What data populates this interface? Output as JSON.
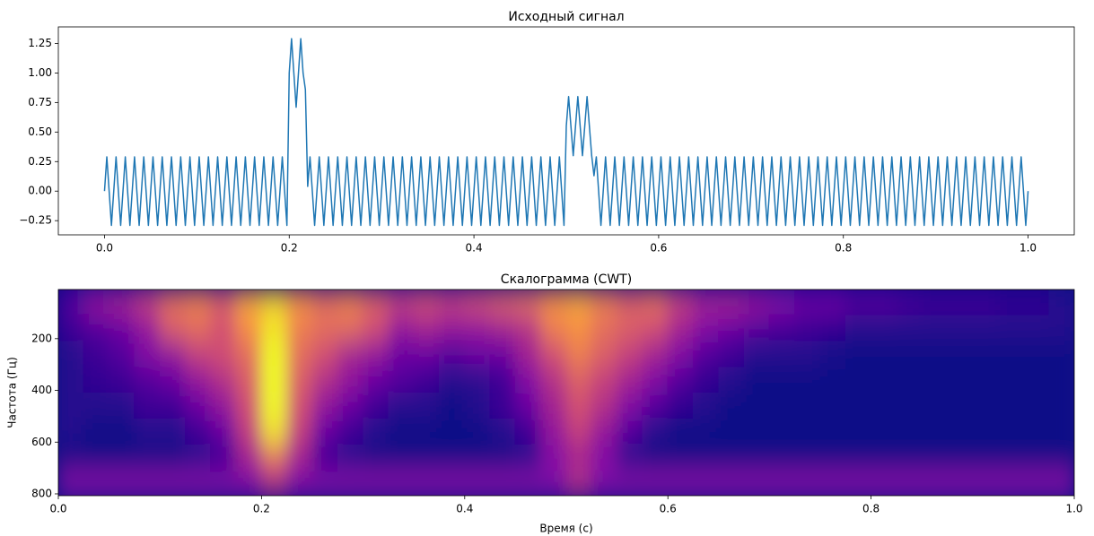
{
  "chart_data": [
    {
      "type": "line",
      "title": "Исходный сигнал",
      "color": "#1f77b4",
      "xlim": [
        -0.05,
        1.05
      ],
      "ylim": [
        -0.37,
        1.39
      ],
      "xticks": [
        {
          "value": 0,
          "label": "0.0"
        },
        {
          "value": 0.2,
          "label": "0.2"
        },
        {
          "value": 0.4,
          "label": "0.4"
        },
        {
          "value": 0.6,
          "label": "0.6"
        },
        {
          "value": 0.8,
          "label": "0.8"
        },
        {
          "value": 1,
          "label": "1.0"
        }
      ],
      "yticks": [
        {
          "value": -0.25,
          "label": "−0.25"
        },
        {
          "value": 0,
          "label": "0.00"
        },
        {
          "value": 0.25,
          "label": "0.25"
        },
        {
          "value": 0.5,
          "label": "0.50"
        },
        {
          "value": 0.75,
          "label": "0.75"
        },
        {
          "value": 1,
          "label": "1.00"
        },
        {
          "value": 1.25,
          "label": "1.25"
        }
      ],
      "x": [
        0.0,
        0.0025,
        0.005,
        0.0075,
        0.01,
        0.0125,
        0.015,
        0.0175,
        0.02,
        0.0225,
        0.025,
        0.0275,
        0.03,
        0.0325,
        0.035,
        0.0375,
        0.04,
        0.0425,
        0.045,
        0.0475,
        0.05,
        0.0525,
        0.055,
        0.0575,
        0.06,
        0.0625,
        0.065,
        0.0675,
        0.07,
        0.0725,
        0.075,
        0.0775,
        0.08,
        0.0825,
        0.085,
        0.0875,
        0.09,
        0.0925,
        0.095,
        0.0975,
        0.1,
        0.1025,
        0.105,
        0.1075,
        0.11,
        0.1125,
        0.115,
        0.1175,
        0.12,
        0.1225,
        0.125,
        0.1275,
        0.13,
        0.1325,
        0.135,
        0.1375,
        0.14,
        0.1425,
        0.145,
        0.1475,
        0.15,
        0.1525,
        0.155,
        0.1575,
        0.16,
        0.1625,
        0.165,
        0.1675,
        0.17,
        0.1725,
        0.175,
        0.1775,
        0.18,
        0.1825,
        0.185,
        0.1875,
        0.19,
        0.1925,
        0.195,
        0.1975,
        0.2,
        0.2025,
        0.205,
        0.2075,
        0.21,
        0.2125,
        0.215,
        0.2175,
        0.22,
        0.2225,
        0.225,
        0.2275,
        0.23,
        0.2325,
        0.235,
        0.2375,
        0.24,
        0.2425,
        0.245,
        0.2475,
        0.25,
        0.2525,
        0.255,
        0.2575,
        0.26,
        0.2625,
        0.265,
        0.2675,
        0.27,
        0.2725,
        0.275,
        0.2775,
        0.28,
        0.2825,
        0.285,
        0.2875,
        0.29,
        0.2925,
        0.295,
        0.2975,
        0.3,
        0.3025,
        0.305,
        0.3075,
        0.31,
        0.3125,
        0.315,
        0.3175,
        0.32,
        0.3225,
        0.325,
        0.3275,
        0.33,
        0.3325,
        0.335,
        0.3375,
        0.34,
        0.3425,
        0.345,
        0.3475,
        0.35,
        0.3525,
        0.355,
        0.3575,
        0.36,
        0.3625,
        0.365,
        0.3675,
        0.37,
        0.3725,
        0.375,
        0.3775,
        0.38,
        0.3825,
        0.385,
        0.3875,
        0.39,
        0.3925,
        0.395,
        0.3975,
        0.4,
        0.4025,
        0.405,
        0.4075,
        0.41,
        0.4125,
        0.415,
        0.4175,
        0.42,
        0.4225,
        0.425,
        0.4275,
        0.43,
        0.4325,
        0.435,
        0.4375,
        0.44,
        0.4425,
        0.445,
        0.4475,
        0.45,
        0.4525,
        0.455,
        0.4575,
        0.46,
        0.4625,
        0.465,
        0.4675,
        0.47,
        0.4725,
        0.475,
        0.4775,
        0.48,
        0.4825,
        0.485,
        0.4875,
        0.49,
        0.4925,
        0.495,
        0.4975,
        0.5,
        0.5025,
        0.505,
        0.5075,
        0.51,
        0.5125,
        0.515,
        0.5175,
        0.52,
        0.5225,
        0.525,
        0.5275,
        0.53,
        0.5325,
        0.535,
        0.5375,
        0.54,
        0.5425,
        0.545,
        0.5475,
        0.55,
        0.5525,
        0.555,
        0.5575,
        0.56,
        0.5625,
        0.565,
        0.5675,
        0.57,
        0.5725,
        0.575,
        0.5775,
        0.58,
        0.5825,
        0.585,
        0.5875,
        0.59,
        0.5925,
        0.595,
        0.5975,
        0.6,
        0.6025,
        0.605,
        0.6075,
        0.61,
        0.6125,
        0.615,
        0.6175,
        0.62,
        0.6225,
        0.625,
        0.6275,
        0.63,
        0.6325,
        0.635,
        0.6375,
        0.64,
        0.6425,
        0.645,
        0.6475,
        0.65,
        0.6525,
        0.655,
        0.6575,
        0.66,
        0.6625,
        0.665,
        0.6675,
        0.67,
        0.6725,
        0.675,
        0.6775,
        0.68,
        0.6825,
        0.685,
        0.6875,
        0.69,
        0.6925,
        0.695,
        0.6975,
        0.7,
        0.7025,
        0.705,
        0.7075,
        0.71,
        0.7125,
        0.715,
        0.7175,
        0.72,
        0.7225,
        0.725,
        0.7275,
        0.73,
        0.7325,
        0.735,
        0.7375,
        0.74,
        0.7425,
        0.745,
        0.7475,
        0.75,
        0.7525,
        0.755,
        0.7575,
        0.76,
        0.7625,
        0.765,
        0.7675,
        0.77,
        0.7725,
        0.775,
        0.7775,
        0.78,
        0.7825,
        0.785,
        0.7875,
        0.79,
        0.7925,
        0.795,
        0.7975,
        0.8,
        0.8025,
        0.805,
        0.8075,
        0.81,
        0.8125,
        0.815,
        0.8175,
        0.82,
        0.8225,
        0.825,
        0.8275,
        0.83,
        0.8325,
        0.835,
        0.8375,
        0.84,
        0.8425,
        0.845,
        0.8475,
        0.85,
        0.8525,
        0.855,
        0.8575,
        0.86,
        0.8625,
        0.865,
        0.8675,
        0.87,
        0.8725,
        0.875,
        0.8775,
        0.88,
        0.8825,
        0.885,
        0.8875,
        0.89,
        0.8925,
        0.895,
        0.8975,
        0.9,
        0.9025,
        0.905,
        0.9075,
        0.91,
        0.9125,
        0.915,
        0.9175,
        0.92,
        0.9225,
        0.925,
        0.9275,
        0.93,
        0.9325,
        0.935,
        0.9375,
        0.94,
        0.9425,
        0.945,
        0.9475,
        0.95,
        0.9525,
        0.955,
        0.9575,
        0.96,
        0.9625,
        0.965,
        0.9675,
        0.97,
        0.9725,
        0.975,
        0.9775,
        0.98,
        0.9825,
        0.985,
        0.9875,
        0.99,
        0.9925,
        0.995,
        0.9975,
        1.0
      ],
      "values": [
        0,
        0.29,
        0,
        -0.29,
        0,
        0.29,
        0,
        -0.29,
        0,
        0.29,
        0,
        -0.29,
        0,
        0.29,
        0,
        -0.29,
        0,
        0.29,
        0,
        -0.29,
        0,
        0.29,
        0,
        -0.29,
        0,
        0.29,
        0,
        -0.29,
        0,
        0.29,
        0,
        -0.29,
        0,
        0.29,
        0,
        -0.29,
        0,
        0.29,
        0,
        -0.29,
        0,
        0.29,
        0,
        -0.29,
        0,
        0.29,
        0,
        -0.29,
        0,
        0.29,
        0,
        -0.29,
        0,
        0.29,
        0,
        -0.29,
        0,
        0.29,
        0,
        -0.29,
        0,
        0.29,
        0,
        -0.29,
        0,
        0.29,
        0,
        -0.29,
        0,
        0.29,
        0,
        -0.29,
        0,
        0.29,
        0,
        -0.29,
        0,
        0.29,
        0,
        -0.29,
        1.0,
        1.29,
        1.0,
        0.71,
        1.0,
        1.29,
        1.0,
        0.86,
        0.04,
        0.29,
        0,
        -0.29,
        0,
        0.29,
        0,
        -0.29,
        0,
        0.29,
        0,
        -0.29,
        0,
        0.29,
        0,
        -0.29,
        0,
        0.29,
        0,
        -0.29,
        0,
        0.29,
        0,
        -0.29,
        0,
        0.29,
        0,
        -0.29,
        0,
        0.29,
        0,
        -0.29,
        0,
        0.29,
        0,
        -0.29,
        0,
        0.29,
        0,
        -0.29,
        0,
        0.29,
        0,
        -0.29,
        0,
        0.29,
        0,
        -0.29,
        0,
        0.29,
        0,
        -0.29,
        0,
        0.29,
        0,
        -0.29,
        0,
        0.29,
        0,
        -0.29,
        0,
        0.29,
        0,
        -0.29,
        0,
        0.29,
        0,
        -0.29,
        0,
        0.29,
        0,
        -0.29,
        0,
        0.29,
        0,
        -0.29,
        0,
        0.29,
        0,
        -0.29,
        0,
        0.29,
        0,
        -0.29,
        0,
        0.29,
        0,
        -0.29,
        0,
        0.29,
        0,
        -0.29,
        0,
        0.29,
        0,
        -0.29,
        0,
        0.29,
        0,
        -0.29,
        0,
        0.29,
        0,
        -0.29,
        0,
        0.29,
        0,
        -0.29,
        0,
        0.29,
        0,
        -0.29,
        0.55,
        0.8,
        0.55,
        0.3,
        0.55,
        0.8,
        0.55,
        0.3,
        0.55,
        0.8,
        0.55,
        0.3,
        0.13,
        0.29,
        0,
        -0.29,
        0,
        0.29,
        0,
        -0.29,
        0,
        0.29,
        0,
        -0.29,
        0,
        0.29,
        0,
        -0.29,
        0,
        0.29,
        0,
        -0.29,
        0,
        0.29,
        0,
        -0.29,
        0,
        0.29,
        0,
        -0.29,
        0,
        0.29,
        0,
        -0.29,
        0,
        0.29,
        0,
        -0.29,
        0,
        0.29,
        0,
        -0.29,
        0,
        0.29,
        0,
        -0.29,
        0,
        0.29,
        0,
        -0.29,
        0,
        0.29,
        0,
        -0.29,
        0,
        0.29,
        0,
        -0.29,
        0,
        0.29,
        0,
        -0.29,
        0,
        0.29,
        0,
        -0.29,
        0,
        0.29,
        0,
        -0.29,
        0,
        0.29,
        0,
        -0.29,
        0,
        0.29,
        0,
        -0.29,
        0,
        0.29,
        0,
        -0.29,
        0,
        0.29,
        0,
        -0.29,
        0,
        0.29,
        0,
        -0.29,
        0,
        0.29,
        0,
        -0.29,
        0,
        0.29,
        0,
        -0.29,
        0,
        0.29,
        0,
        -0.29,
        0,
        0.29,
        0,
        -0.29,
        0,
        0.29,
        0,
        -0.29,
        0,
        0.29,
        0,
        -0.29,
        0,
        0.29,
        0,
        -0.29,
        0,
        0.29,
        0,
        -0.29,
        0,
        0.29,
        0,
        -0.29,
        0,
        0.29,
        0,
        -0.29,
        0,
        0.29,
        0,
        -0.29,
        0,
        0.29,
        0,
        -0.29,
        0,
        0.29,
        0,
        -0.29,
        0,
        0.29,
        0,
        -0.29,
        0,
        0.29,
        0,
        -0.29,
        0,
        0.29,
        0,
        -0.29,
        0,
        0.29,
        0,
        -0.29,
        0,
        0.29,
        0,
        -0.29,
        0,
        0.29,
        0,
        -0.29,
        0,
        0.29,
        0,
        -0.29,
        0,
        0.29,
        0,
        -0.29,
        0,
        0.29,
        0,
        -0.29,
        0,
        0.29,
        0,
        -0.29,
        0,
        0.29,
        0,
        -0.29,
        0,
        0.29,
        0,
        -0.29,
        0
      ]
    },
    {
      "type": "heatmap",
      "title": "Скалограмма (CWT)",
      "xlabel": "Время (с)",
      "ylabel": "Частота (Гц)",
      "colormap": "plasma",
      "xlim": [
        0,
        1
      ],
      "ylim": [
        807,
        10
      ],
      "xticks": [
        {
          "value": 0,
          "label": "0.0"
        },
        {
          "value": 0.2,
          "label": "0.2"
        },
        {
          "value": 0.4,
          "label": "0.4"
        },
        {
          "value": 0.6,
          "label": "0.6"
        },
        {
          "value": 0.8,
          "label": "0.8"
        },
        {
          "value": 1,
          "label": "1.0"
        }
      ],
      "yticks": [
        200,
        400,
        600,
        800
      ],
      "x": [
        0.0125,
        0.0375,
        0.0625,
        0.0875,
        0.1125,
        0.1375,
        0.1625,
        0.1875,
        0.2125,
        0.2375,
        0.2625,
        0.2875,
        0.3125,
        0.3375,
        0.3625,
        0.3875,
        0.4125,
        0.4375,
        0.4625,
        0.4875,
        0.5125,
        0.5375,
        0.5625,
        0.5875,
        0.6125,
        0.6375,
        0.6625,
        0.6875,
        0.7125,
        0.7375,
        0.7625,
        0.7875,
        0.8125,
        0.8375,
        0.8625,
        0.8875,
        0.9125,
        0.9375,
        0.9625,
        0.9875
      ],
      "y": [
        60,
        160,
        260,
        360,
        460,
        560,
        660,
        760
      ],
      "z": [
        [
          0.15,
          0.3,
          0.35,
          0.45,
          0.6,
          0.65,
          0.55,
          0.75,
          0.85,
          0.7,
          0.6,
          0.65,
          0.55,
          0.45,
          0.5,
          0.45,
          0.5,
          0.55,
          0.6,
          0.7,
          0.75,
          0.65,
          0.55,
          0.6,
          0.45,
          0.35,
          0.35,
          0.3,
          0.25,
          0.2,
          0.2,
          0.15,
          0.15,
          0.12,
          0.1,
          0.1,
          0.1,
          0.08,
          0.08,
          0.05
        ],
        [
          0.1,
          0.15,
          0.2,
          0.3,
          0.55,
          0.6,
          0.5,
          0.7,
          0.9,
          0.65,
          0.6,
          0.6,
          0.5,
          0.3,
          0.35,
          0.3,
          0.3,
          0.35,
          0.4,
          0.65,
          0.7,
          0.6,
          0.55,
          0.5,
          0.35,
          0.25,
          0.2,
          0.15,
          0.12,
          0.1,
          0.08,
          0.05,
          0.05,
          0.05,
          0.05,
          0.05,
          0.05,
          0.05,
          0.05,
          0.05
        ],
        [
          0.05,
          0.1,
          0.15,
          0.25,
          0.3,
          0.45,
          0.5,
          0.6,
          0.95,
          0.6,
          0.5,
          0.35,
          0.3,
          0.2,
          0.2,
          0.15,
          0.2,
          0.2,
          0.35,
          0.5,
          0.65,
          0.55,
          0.45,
          0.35,
          0.25,
          0.15,
          0.1,
          0.05,
          0.05,
          0.05,
          0.02,
          0,
          0,
          0,
          0,
          0,
          0,
          0,
          0,
          0
        ],
        [
          0.05,
          0.08,
          0.1,
          0.15,
          0.2,
          0.3,
          0.4,
          0.55,
          0.95,
          0.55,
          0.4,
          0.3,
          0.2,
          0.15,
          0.1,
          0.05,
          0.05,
          0.1,
          0.25,
          0.4,
          0.55,
          0.45,
          0.35,
          0.25,
          0.15,
          0.08,
          0.05,
          0,
          0,
          0,
          0,
          0,
          0,
          0,
          0,
          0,
          0,
          0,
          0,
          0
        ],
        [
          0.05,
          0.05,
          0.05,
          0.1,
          0.1,
          0.2,
          0.3,
          0.5,
          0.95,
          0.5,
          0.3,
          0.2,
          0.1,
          0.05,
          0.05,
          0,
          0.05,
          0.1,
          0.2,
          0.35,
          0.5,
          0.4,
          0.25,
          0.15,
          0.08,
          0.05,
          0,
          0,
          0,
          0,
          0,
          0,
          0,
          0,
          0,
          0,
          0,
          0,
          0,
          0
        ],
        [
          0.05,
          0,
          0,
          0.05,
          0.05,
          0.1,
          0.2,
          0.45,
          0.9,
          0.45,
          0.2,
          0.1,
          0.05,
          0,
          0,
          0,
          0,
          0.05,
          0.1,
          0.3,
          0.45,
          0.3,
          0.15,
          0.05,
          0,
          0,
          0,
          0,
          0,
          0,
          0,
          0,
          0,
          0,
          0,
          0,
          0,
          0,
          0,
          0
        ],
        [
          0,
          0,
          0,
          0,
          0,
          0.05,
          0.1,
          0.35,
          0.6,
          0.35,
          0.1,
          0.05,
          0,
          0,
          0,
          0,
          0,
          0,
          0.05,
          0.25,
          0.35,
          0.25,
          0.05,
          0,
          0,
          0,
          0,
          0,
          0,
          0,
          0,
          0,
          0,
          0,
          0,
          0,
          0,
          0,
          0,
          0
        ],
        [
          0.25,
          0.25,
          0.25,
          0.25,
          0.25,
          0.25,
          0.25,
          0.25,
          0.4,
          0.25,
          0.25,
          0.25,
          0.25,
          0.25,
          0.25,
          0.25,
          0.25,
          0.25,
          0.25,
          0.25,
          0.4,
          0.25,
          0.25,
          0.25,
          0.25,
          0.25,
          0.25,
          0.25,
          0.25,
          0.25,
          0.25,
          0.25,
          0.25,
          0.25,
          0.25,
          0.25,
          0.25,
          0.25,
          0.25,
          0.25
        ]
      ]
    }
  ]
}
